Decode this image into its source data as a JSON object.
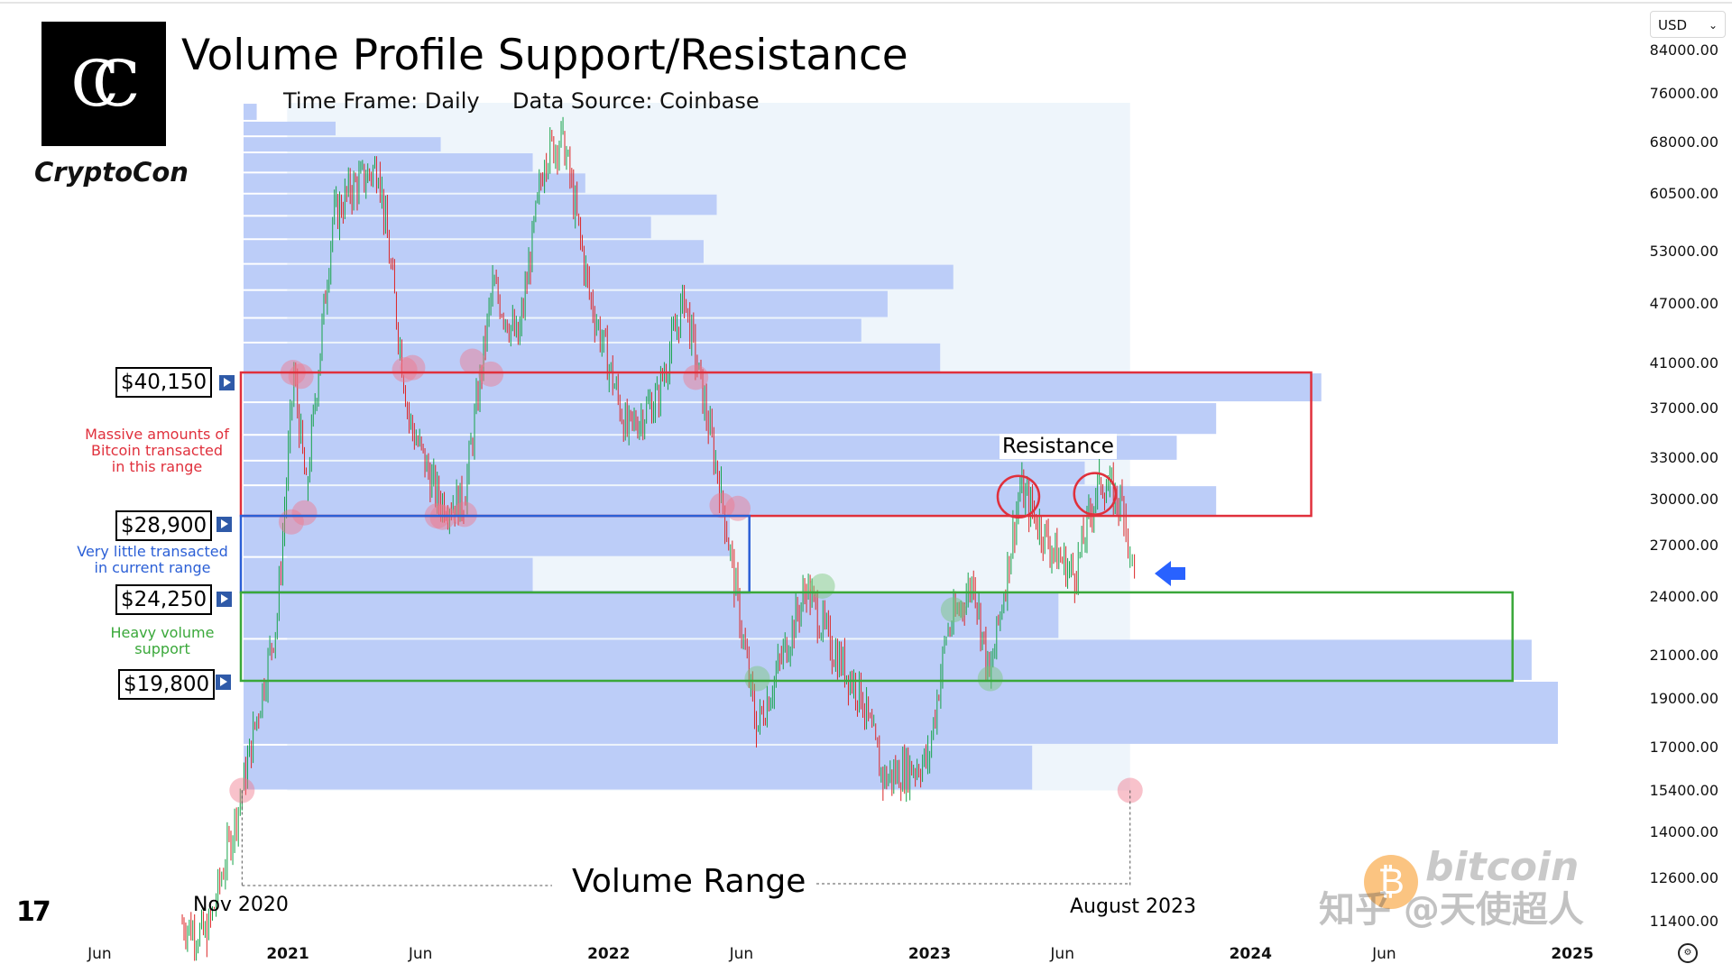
{
  "header": {
    "title": "Volume Profile Support/Resistance",
    "time_frame": "Time Frame: Daily",
    "data_source": "Data Source: Coinbase",
    "brand": "CryptoCon",
    "logo_letters": "CC"
  },
  "currency_selector": {
    "value": "USD"
  },
  "annotations": {
    "levels": [
      "$40,150",
      "$28,900",
      "$24,250",
      "$19,800"
    ],
    "note_red": [
      "Massive amounts of",
      "Bitcoin transacted",
      "in this range"
    ],
    "note_blue": [
      "Very little transacted",
      "in current range"
    ],
    "note_green": [
      "Heavy volume",
      "support"
    ],
    "resistance_label": "Resistance",
    "volume_range_label": "Volume Range",
    "range_start_label": "Nov 2020",
    "range_end_label": "August 2023"
  },
  "colors": {
    "red_zone": "#e0303c",
    "blue_zone": "#2b5fd6",
    "green_zone": "#3aa83a",
    "volume_bars": "#bccdf8",
    "range_shade": "#eef5fb",
    "candle_up": "#16a34a",
    "candle_down": "#dc2626"
  },
  "watermark": {
    "text": "知乎 @天使超人",
    "logo_text": "bitcoin"
  },
  "chart_data": {
    "type": "line",
    "scale": "log",
    "y_ticks": [
      84000,
      76000,
      68000,
      60500,
      53000,
      47000,
      41000,
      37000,
      33000,
      30000,
      27000,
      24000,
      21000,
      19000,
      17000,
      15400,
      14000,
      12600,
      11400
    ],
    "y_tick_labels": [
      "84000.00",
      "76000.00",
      "68000.00",
      "60500.00",
      "53000.00",
      "47000.00",
      "41000.00",
      "37000.00",
      "33000.00",
      "30000.00",
      "27000.00",
      "24000.00",
      "21000.00",
      "19000.00",
      "17000.00",
      "15400.00",
      "14000.00",
      "12600.00",
      "11400.00"
    ],
    "ylim": [
      11000,
      92000
    ],
    "x_ticks": [
      "Jun",
      "2021",
      "Jun",
      "2022",
      "Jun",
      "2023",
      "Jun",
      "2024",
      "Jun",
      "2025"
    ],
    "x_tick_dates": [
      "2020-06-01",
      "2021-01-01",
      "2021-06-01",
      "2022-01-01",
      "2022-06-01",
      "2023-01-01",
      "2023-06-01",
      "2024-01-01",
      "2024-06-01",
      "2025-01-01"
    ],
    "x_range": [
      "2020-03-15",
      "2025-03-20"
    ],
    "price_series": {
      "name": "",
      "points": [
        [
          "2020-09-01",
          11400
        ],
        [
          "2020-10-01",
          11000
        ],
        [
          "2020-11-10",
          15400
        ],
        [
          "2020-12-20",
          23000
        ],
        [
          "2021-01-08",
          40150
        ],
        [
          "2021-01-22",
          30500
        ],
        [
          "2021-02-21",
          57000
        ],
        [
          "2021-03-13",
          61000
        ],
        [
          "2021-04-14",
          64500
        ],
        [
          "2021-05-19",
          36000
        ],
        [
          "2021-06-22",
          29900
        ],
        [
          "2021-07-20",
          29800
        ],
        [
          "2021-08-22",
          49000
        ],
        [
          "2021-09-20",
          43000
        ],
        [
          "2021-10-20",
          66000
        ],
        [
          "2021-11-10",
          69000
        ],
        [
          "2021-12-10",
          48000
        ],
        [
          "2022-01-22",
          35000
        ],
        [
          "2022-02-25",
          38000
        ],
        [
          "2022-03-28",
          47500
        ],
        [
          "2022-05-09",
          30500
        ],
        [
          "2022-06-18",
          17700
        ],
        [
          "2022-08-14",
          24500
        ],
        [
          "2022-09-10",
          21500
        ],
        [
          "2022-10-15",
          19200
        ],
        [
          "2022-11-09",
          15800
        ],
        [
          "2022-12-30",
          16500
        ],
        [
          "2023-01-20",
          22000
        ],
        [
          "2023-02-20",
          25000
        ],
        [
          "2023-03-10",
          19800
        ],
        [
          "2023-04-14",
          30800
        ],
        [
          "2023-05-20",
          26800
        ],
        [
          "2023-06-15",
          25200
        ],
        [
          "2023-07-13",
          31500
        ],
        [
          "2023-08-10",
          29500
        ],
        [
          "2023-08-17",
          26100
        ],
        [
          "2023-08-22",
          26000
        ]
      ]
    },
    "volume_profile": [
      {
        "from": 15400,
        "to": 17100,
        "volume": 0.6
      },
      {
        "from": 17100,
        "to": 19800,
        "volume": 1.0
      },
      {
        "from": 19800,
        "to": 21800,
        "volume": 0.98
      },
      {
        "from": 21800,
        "to": 24250,
        "volume": 0.62
      },
      {
        "from": 24250,
        "to": 26300,
        "volume": 0.22
      },
      {
        "from": 26300,
        "to": 28900,
        "volume": 0.37
      },
      {
        "from": 28900,
        "to": 31000,
        "volume": 0.74
      },
      {
        "from": 31000,
        "to": 32800,
        "volume": 0.64
      },
      {
        "from": 32800,
        "to": 34800,
        "volume": 0.71
      },
      {
        "from": 34800,
        "to": 37500,
        "volume": 0.74
      },
      {
        "from": 37500,
        "to": 40150,
        "volume": 0.82
      },
      {
        "from": 40150,
        "to": 43000,
        "volume": 0.53
      },
      {
        "from": 43000,
        "to": 45500,
        "volume": 0.47
      },
      {
        "from": 45500,
        "to": 48500,
        "volume": 0.49
      },
      {
        "from": 48500,
        "to": 51500,
        "volume": 0.54
      },
      {
        "from": 51500,
        "to": 54500,
        "volume": 0.35
      },
      {
        "from": 54500,
        "to": 57500,
        "volume": 0.31
      },
      {
        "from": 57500,
        "to": 60500,
        "volume": 0.36
      },
      {
        "from": 60500,
        "to": 63500,
        "volume": 0.26
      },
      {
        "from": 63500,
        "to": 66500,
        "volume": 0.22
      },
      {
        "from": 66500,
        "to": 69000,
        "volume": 0.15
      },
      {
        "from": 69000,
        "to": 71500,
        "volume": 0.07
      },
      {
        "from": 71500,
        "to": 74500,
        "volume": 0.01
      }
    ],
    "volume_range": {
      "start": "2020-11-10",
      "end": "2023-08-17",
      "low": 15400,
      "high": 74500
    },
    "zones": [
      {
        "name": "red",
        "low": 28900,
        "high": 40150,
        "end": "2024-03-10"
      },
      {
        "name": "blue",
        "low": 24250,
        "high": 28900,
        "end": "2022-06-10"
      },
      {
        "name": "green",
        "low": 19800,
        "high": 24250,
        "end": "2024-10-25"
      }
    ],
    "markers": [
      {
        "date": "2020-11-10",
        "price": 15400,
        "color": "red"
      },
      {
        "date": "2023-08-17",
        "price": 15400,
        "color": "red"
      },
      {
        "date": "2021-01-07",
        "price": 40150,
        "color": "red"
      },
      {
        "date": "2021-01-16",
        "price": 39800,
        "color": "red"
      },
      {
        "date": "2021-05-14",
        "price": 40400,
        "color": "red"
      },
      {
        "date": "2021-05-23",
        "price": 40600,
        "color": "red"
      },
      {
        "date": "2021-07-30",
        "price": 41200,
        "color": "red"
      },
      {
        "date": "2021-08-20",
        "price": 40000,
        "color": "red"
      },
      {
        "date": "2022-04-10",
        "price": 39700,
        "color": "red"
      },
      {
        "date": "2021-01-05",
        "price": 28500,
        "color": "red"
      },
      {
        "date": "2021-01-20",
        "price": 29100,
        "color": "red"
      },
      {
        "date": "2021-06-20",
        "price": 28900,
        "color": "red"
      },
      {
        "date": "2021-06-26",
        "price": 28800,
        "color": "red"
      },
      {
        "date": "2021-07-21",
        "price": 29000,
        "color": "red"
      },
      {
        "date": "2022-05-10",
        "price": 29600,
        "color": "red"
      },
      {
        "date": "2022-05-28",
        "price": 29400,
        "color": "red"
      },
      {
        "date": "2022-09-01",
        "price": 24600,
        "color": "green"
      },
      {
        "date": "2023-01-28",
        "price": 23300,
        "color": "green"
      },
      {
        "date": "2022-06-19",
        "price": 19900,
        "color": "green"
      },
      {
        "date": "2023-03-11",
        "price": 19900,
        "color": "green"
      }
    ],
    "resistance_circles": [
      {
        "date": "2023-04-12",
        "price": 30200
      },
      {
        "date": "2023-07-08",
        "price": 30400
      }
    ]
  }
}
